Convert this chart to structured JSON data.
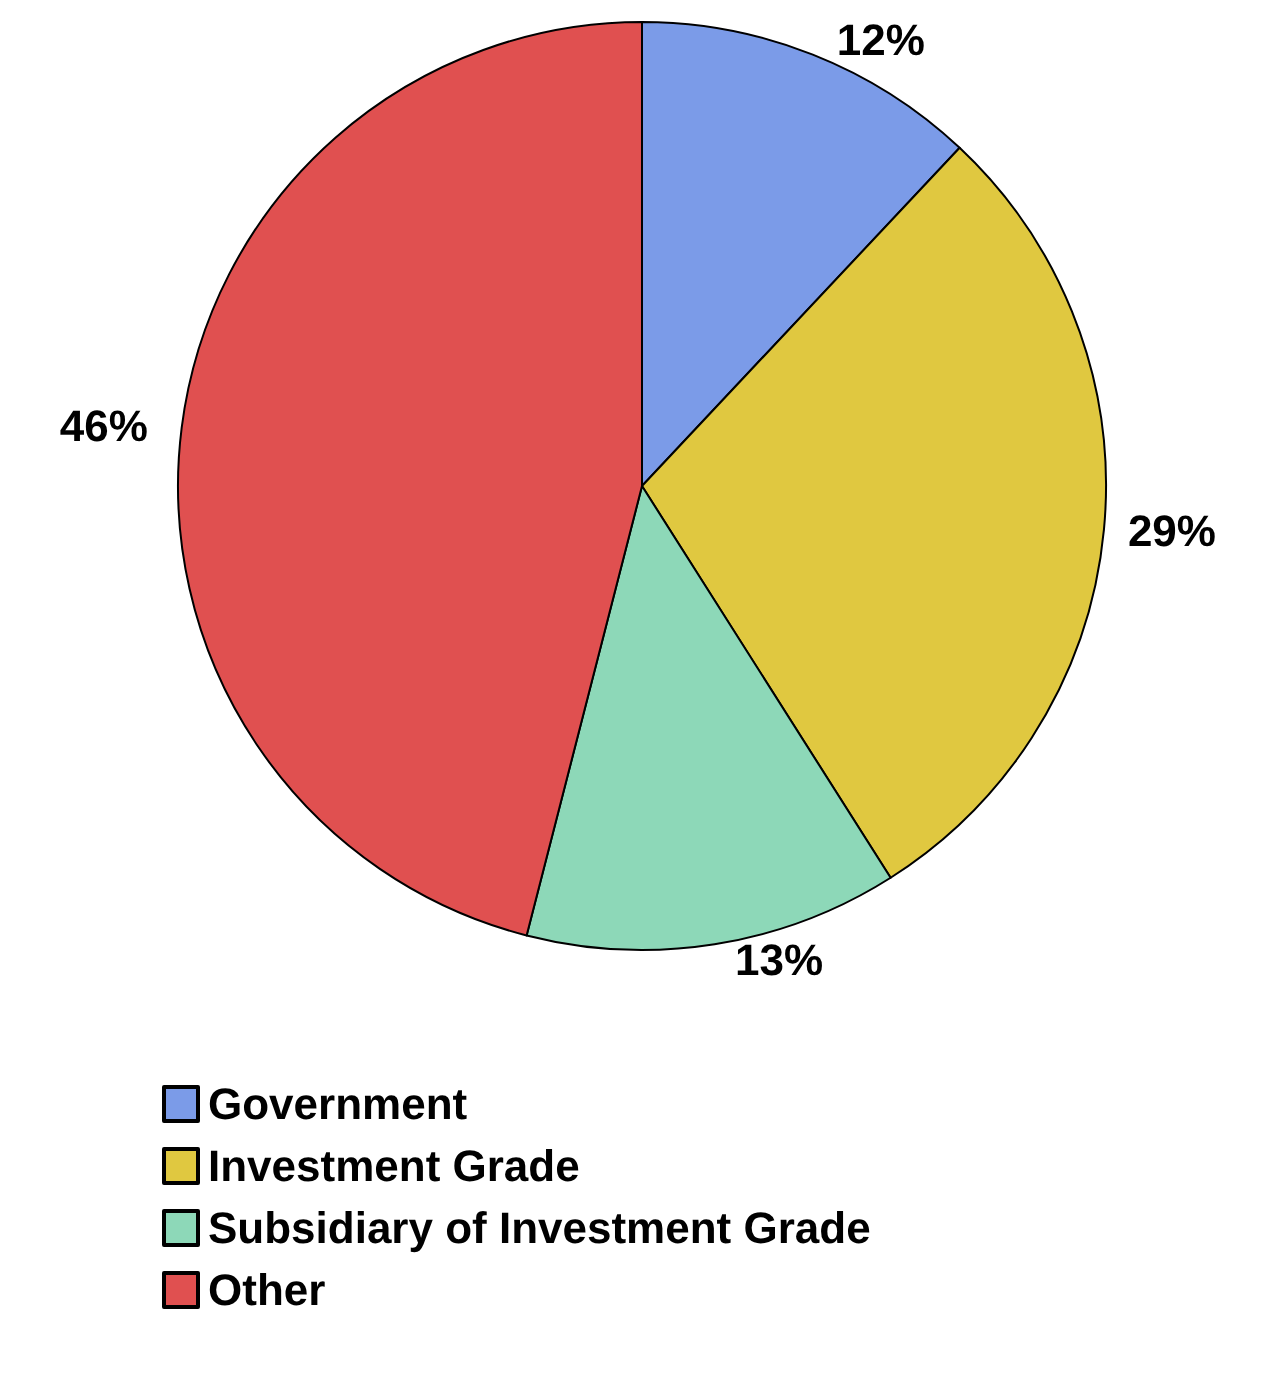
{
  "chart_data": {
    "type": "pie",
    "categories": [
      "Government",
      "Investment Grade",
      "Subsidiary of Investment Grade",
      "Other"
    ],
    "values": [
      12,
      29,
      13,
      46
    ],
    "colors": [
      "#7b9be8",
      "#e0c840",
      "#8dd8b8",
      "#e05050"
    ],
    "value_labels": [
      "12%",
      "29%",
      "13%",
      "46%"
    ],
    "legend": "bottom"
  }
}
